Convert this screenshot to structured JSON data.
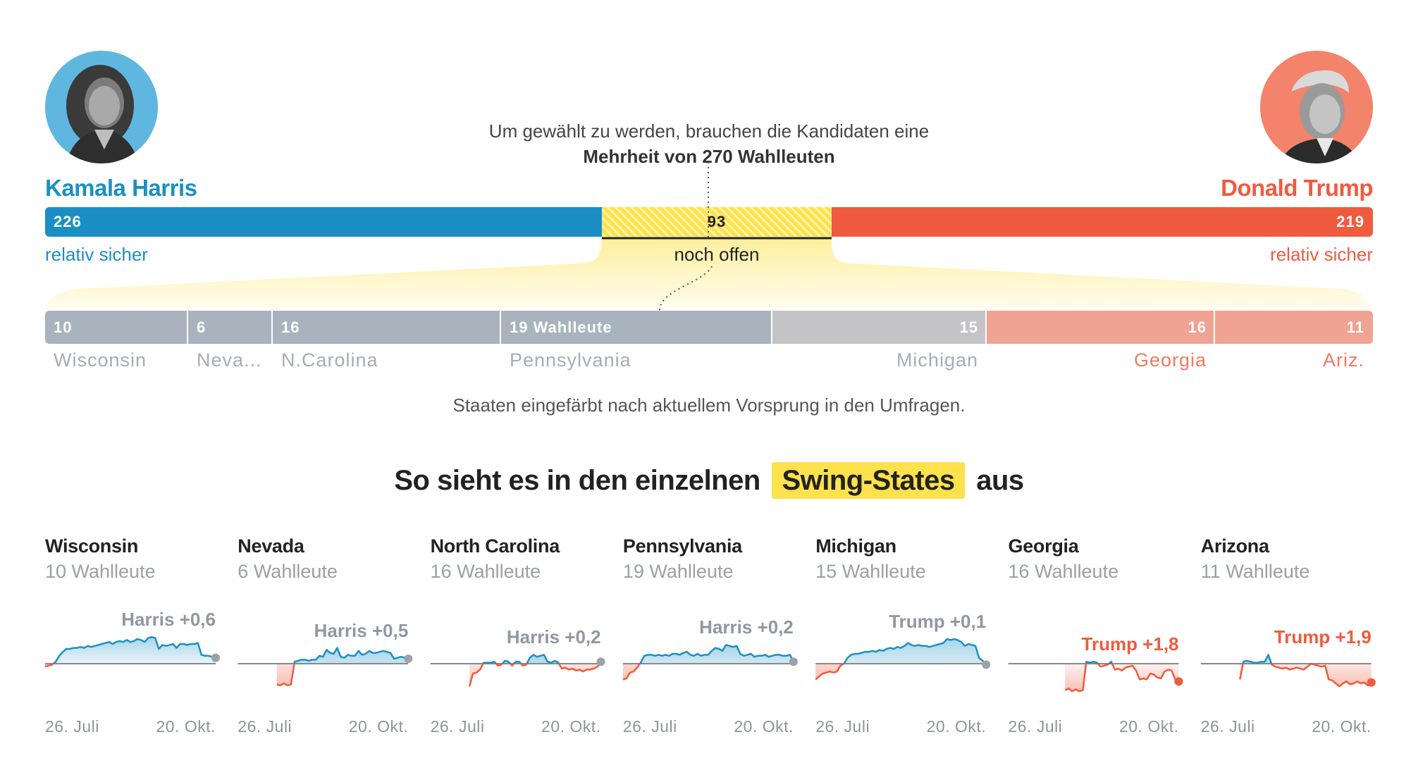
{
  "header": {
    "majority_line1": "Um gewählt zu werden, brauchen die Kandidaten eine",
    "majority_line2": "Mehrheit von 270 Wahlleuten"
  },
  "harris": {
    "name": "Kamala Harris",
    "electors": "226",
    "safe_label": "relativ sicher",
    "color": "#1b8fc4"
  },
  "trump": {
    "name": "Donald Trump",
    "electors": "219",
    "safe_label": "relativ sicher",
    "color": "#ef5b3f"
  },
  "open": {
    "electors": "93",
    "label": "noch offen",
    "color": "#fde14d"
  },
  "states_bar": [
    {
      "num": "10",
      "name": "Wisconsin",
      "lean": "tossup"
    },
    {
      "num": "6",
      "name": "Neva...",
      "lean": "tossup"
    },
    {
      "num": "16",
      "name": "N.Carolina",
      "lean": "tossup"
    },
    {
      "num": "19 Wahlleute",
      "name": "Pennsylvania",
      "lean": "tossup"
    },
    {
      "num": "15",
      "name": "Michigan",
      "lean": "tossup"
    },
    {
      "num": "16",
      "name": "Georgia",
      "lean": "trump"
    },
    {
      "num": "11",
      "name": "Ariz.",
      "lean": "trump"
    }
  ],
  "states_note": "Staaten eingefärbt nach aktuellem Vorsprung in den Umfragen.",
  "section_title": {
    "before": "So sieht es in den einzelnen",
    "highlight": "Swing-States",
    "after": "aus"
  },
  "colors": {
    "harris": "#1b8fc4",
    "trump": "#ef5b3f",
    "highlight": "#fde14d",
    "tossup_gray": "#a9b3bd",
    "trump_light": "#f0a293",
    "lead_gray": "#8f98a2",
    "lead_red": "#ef5b3f"
  },
  "chart_data": [
    {
      "type": "area",
      "title": "Wisconsin",
      "subtitle": "10 Wahlleute",
      "lead": "Harris +0,6",
      "lead_color": "gray",
      "x_start": "26. Juli",
      "x_end": "20. Okt.",
      "values": [
        -0.3,
        -0.2,
        -0.1,
        0.2,
        0.8,
        1.2,
        1.5,
        1.5,
        1.6,
        1.6,
        1.7,
        1.6,
        1.8,
        1.7,
        1.8,
        1.9,
        2.0,
        2.1,
        2.2,
        2.0,
        2.2,
        2.3,
        2.2,
        2.4,
        2.2,
        2.3,
        2.5,
        2.4,
        2.2,
        2.6,
        2.7,
        2.6,
        1.5,
        1.9,
        1.8,
        1.9,
        2.0,
        1.6,
        2.0,
        2.0,
        1.9,
        2.0,
        2.0,
        2.1,
        0.9,
        0.8,
        0.8,
        0.7,
        0.6
      ]
    },
    {
      "type": "area",
      "title": "Nevada",
      "subtitle": "6 Wahlleute",
      "lead": "Harris +0,5",
      "lead_color": "gray",
      "x_start": "26. Juli",
      "x_end": "20. Okt.",
      "values": [
        null,
        null,
        null,
        null,
        null,
        null,
        null,
        null,
        null,
        null,
        null,
        -2.1,
        -2.2,
        -2.0,
        -2.2,
        -2.1,
        0.2,
        0.3,
        0.4,
        0.4,
        0.3,
        0.4,
        0.4,
        0.8,
        0.7,
        1.4,
        1.1,
        1.0,
        1.6,
        0.7,
        0.6,
        0.9,
        0.8,
        0.8,
        1.3,
        0.9,
        1.0,
        1.3,
        1.1,
        1.1,
        1.2,
        1.3,
        1.2,
        1.1,
        0.5,
        0.6,
        0.7,
        0.6,
        0.5
      ]
    },
    {
      "type": "area",
      "title": "North Carolina",
      "subtitle": "16 Wahlleute",
      "lead": "Harris +0,2",
      "lead_color": "gray",
      "x_start": "26. Juli",
      "x_end": "20. Okt.",
      "values": [
        null,
        null,
        null,
        null,
        null,
        null,
        null,
        null,
        null,
        null,
        null,
        -2.3,
        -1.0,
        -0.9,
        -0.6,
        0.1,
        0.1,
        0.1,
        0.2,
        -0.2,
        -0.1,
        0.3,
        0.2,
        -0.2,
        0.2,
        0.2,
        -0.2,
        -0.1,
        0.6,
        0.9,
        0.7,
        0.8,
        0.9,
        0.2,
        0.1,
        0.3,
        0.1,
        -0.5,
        -0.4,
        -0.6,
        -0.5,
        -0.7,
        -0.6,
        -0.8,
        -0.6,
        -0.6,
        -0.5,
        -0.3,
        0.2
      ]
    },
    {
      "type": "area",
      "title": "Pennsylvania",
      "subtitle": "19 Wahlleute",
      "lead": "Harris +0,2",
      "lead_color": "gray",
      "x_start": "26. Juli",
      "x_end": "20. Okt.",
      "values": [
        -1.6,
        -1.5,
        -0.9,
        -0.8,
        -0.4,
        0.1,
        0.8,
        0.9,
        0.9,
        0.8,
        0.9,
        0.8,
        0.9,
        0.8,
        1.0,
        1.0,
        0.9,
        1.1,
        1.2,
        0.9,
        0.8,
        1.0,
        0.8,
        0.9,
        0.9,
        1.3,
        1.6,
        1.5,
        1.3,
        1.9,
        1.8,
        1.7,
        1.8,
        1.0,
        0.8,
        0.9,
        1.0,
        0.7,
        0.8,
        0.8,
        0.9,
        0.7,
        0.8,
        0.9,
        0.9,
        0.8,
        0.8,
        0.9,
        0.2
      ]
    },
    {
      "type": "area",
      "title": "Michigan",
      "subtitle": "15 Wahlleute",
      "lead": "Trump +0,1",
      "lead_color": "gray",
      "x_start": "26. Juli",
      "x_end": "20. Okt.",
      "values": [
        -1.6,
        -1.3,
        -1.0,
        -0.9,
        -0.8,
        -0.9,
        -0.8,
        -0.2,
        0.0,
        0.6,
        0.9,
        1.0,
        1.0,
        1.1,
        1.2,
        1.2,
        1.3,
        1.2,
        1.4,
        1.3,
        1.5,
        1.6,
        1.5,
        1.7,
        1.6,
        1.8,
        2.1,
        1.9,
        1.8,
        1.9,
        1.8,
        1.8,
        1.7,
        1.8,
        1.9,
        2.0,
        2.1,
        2.5,
        2.4,
        2.5,
        2.4,
        2.2,
        1.8,
        2.0,
        1.9,
        1.8,
        0.6,
        0.3,
        -0.1
      ]
    },
    {
      "type": "area",
      "title": "Georgia",
      "subtitle": "16 Wahlleute",
      "lead": "Trump +1,8",
      "lead_color": "red",
      "x_start": "26. Juli",
      "x_end": "20. Okt.",
      "values": [
        null,
        null,
        null,
        null,
        null,
        null,
        null,
        null,
        null,
        null,
        null,
        null,
        null,
        null,
        null,
        null,
        -2.7,
        -2.5,
        -2.8,
        -2.6,
        -2.8,
        -2.7,
        0.2,
        0.1,
        0.2,
        0.1,
        -0.3,
        -0.2,
        -0.1,
        0.2,
        -0.6,
        -0.5,
        -0.7,
        -0.4,
        -0.3,
        -0.2,
        -0.7,
        -1.6,
        -1.5,
        -1.6,
        -1.0,
        -1.1,
        -1.4,
        -1.5,
        -0.8,
        -0.6,
        -0.7,
        -1.6,
        -1.8
      ]
    },
    {
      "type": "area",
      "title": "Arizona",
      "subtitle": "11 Wahlleute",
      "lead": "Trump +1,9",
      "lead_color": "red",
      "x_start": "26. Juli",
      "x_end": "20. Okt.",
      "values": [
        null,
        null,
        null,
        null,
        null,
        null,
        null,
        null,
        null,
        null,
        null,
        -1.6,
        0.2,
        0.3,
        0.2,
        0.1,
        0.1,
        0.2,
        0.2,
        0.9,
        -0.1,
        -0.3,
        -0.4,
        -0.5,
        -0.4,
        -0.6,
        -0.5,
        -0.4,
        -0.5,
        -0.6,
        -0.3,
        0.0,
        -0.1,
        -0.2,
        -0.3,
        -0.2,
        -1.6,
        -1.7,
        -2.0,
        -2.3,
        -2.0,
        -1.8,
        -2.1,
        -2.0,
        -1.8,
        -2.0,
        -1.9,
        -2.2,
        -1.9
      ]
    }
  ]
}
